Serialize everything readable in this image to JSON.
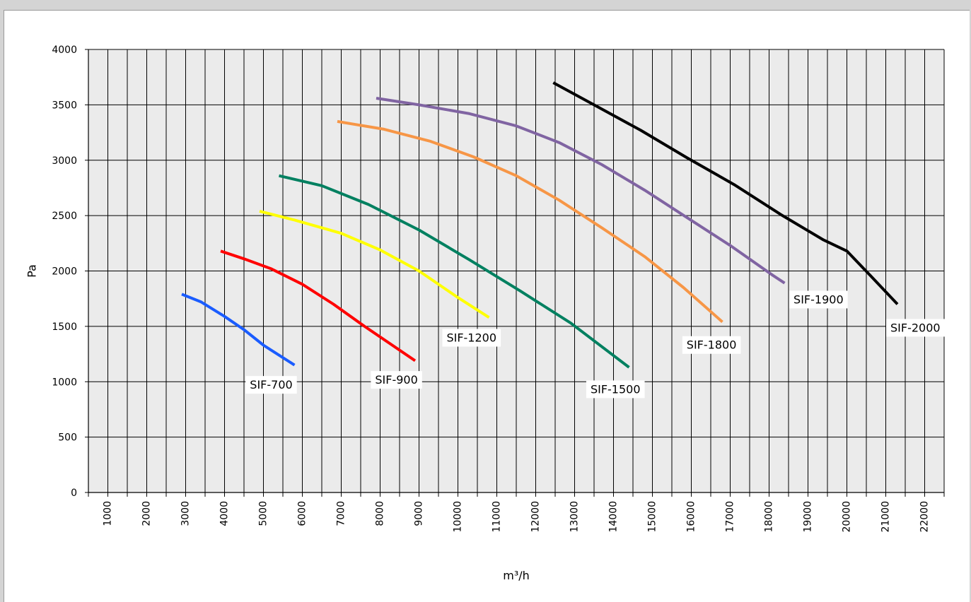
{
  "chart_data": {
    "type": "line",
    "xlabel": "m³/h",
    "ylabel": "Pa",
    "xlim": [
      500,
      22500
    ],
    "ylim": [
      0,
      4000
    ],
    "x_ticks": [
      1000,
      2000,
      3000,
      4000,
      5000,
      6000,
      7000,
      8000,
      9000,
      10000,
      11000,
      12000,
      13000,
      14000,
      15000,
      16000,
      17000,
      18000,
      19000,
      20000,
      21000,
      22000
    ],
    "y_ticks": [
      0,
      500,
      1000,
      1500,
      2000,
      2500,
      3000,
      3500,
      4000
    ],
    "grid": true,
    "legend": "none",
    "series": [
      {
        "name": "SIF-700",
        "color": "#1a5cff",
        "points": [
          [
            2900,
            1790
          ],
          [
            3400,
            1720
          ],
          [
            4000,
            1590
          ],
          [
            4500,
            1470
          ],
          [
            5000,
            1330
          ],
          [
            5800,
            1150
          ]
        ],
        "label_at": [
          5200,
          975
        ]
      },
      {
        "name": "SIF-900",
        "color": "#ff0000",
        "points": [
          [
            3900,
            2180
          ],
          [
            4500,
            2110
          ],
          [
            5200,
            2020
          ],
          [
            6000,
            1880
          ],
          [
            6800,
            1700
          ],
          [
            7600,
            1500
          ],
          [
            8900,
            1190
          ]
        ],
        "label_at": [
          8420,
          1020
        ]
      },
      {
        "name": "SIF-1200",
        "color": "#ffff00",
        "points": [
          [
            4900,
            2540
          ],
          [
            5800,
            2460
          ],
          [
            7000,
            2340
          ],
          [
            8000,
            2190
          ],
          [
            9000,
            2000
          ],
          [
            10000,
            1760
          ],
          [
            10800,
            1580
          ]
        ],
        "label_at": [
          10350,
          1400
        ]
      },
      {
        "name": "SIF-1500",
        "color": "#008060",
        "points": [
          [
            5400,
            2860
          ],
          [
            6500,
            2770
          ],
          [
            7700,
            2600
          ],
          [
            9000,
            2370
          ],
          [
            10300,
            2100
          ],
          [
            11600,
            1820
          ],
          [
            12900,
            1530
          ],
          [
            14400,
            1130
          ]
        ],
        "label_at": [
          14050,
          935
        ]
      },
      {
        "name": "SIF-1800",
        "color": "#f79646",
        "points": [
          [
            6900,
            3350
          ],
          [
            8100,
            3280
          ],
          [
            9300,
            3170
          ],
          [
            10400,
            3030
          ],
          [
            11500,
            2860
          ],
          [
            12600,
            2640
          ],
          [
            13700,
            2390
          ],
          [
            14800,
            2130
          ],
          [
            15800,
            1850
          ],
          [
            16800,
            1540
          ]
        ],
        "label_at": [
          16520,
          1335
        ]
      },
      {
        "name": "SIF-1900",
        "color": "#8064a2",
        "points": [
          [
            7900,
            3560
          ],
          [
            9000,
            3500
          ],
          [
            10300,
            3420
          ],
          [
            11500,
            3310
          ],
          [
            12600,
            3160
          ],
          [
            13700,
            2960
          ],
          [
            14800,
            2730
          ],
          [
            15900,
            2480
          ],
          [
            17000,
            2230
          ],
          [
            18100,
            1960
          ],
          [
            18400,
            1890
          ]
        ],
        "label_at": [
          19270,
          1745
        ]
      },
      {
        "name": "SIF-2000",
        "color": "#000000",
        "points": [
          [
            12450,
            3700
          ],
          [
            13500,
            3500
          ],
          [
            14700,
            3270
          ],
          [
            15900,
            3020
          ],
          [
            17100,
            2780
          ],
          [
            18300,
            2510
          ],
          [
            19400,
            2280
          ],
          [
            20000,
            2180
          ],
          [
            20600,
            1960
          ],
          [
            21300,
            1700
          ]
        ],
        "label_at": [
          21760,
          1490
        ]
      }
    ]
  }
}
